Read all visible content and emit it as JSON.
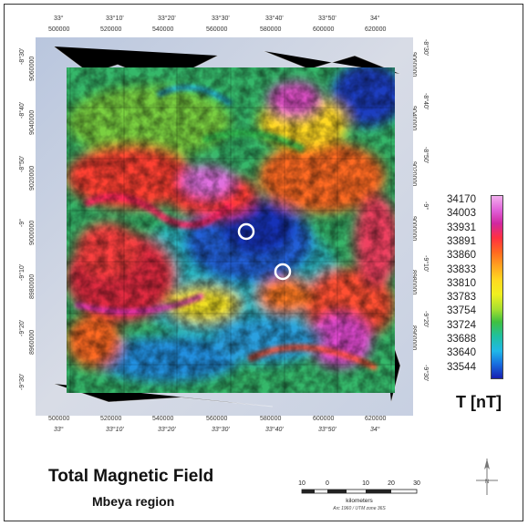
{
  "map": {
    "title": "Total Magnetic Field",
    "subtitle": "Mbeya region",
    "unit_label": "T [nT]",
    "top_degree_labels": [
      "33°",
      "33°10'",
      "33°20'",
      "33°30'",
      "33°40'",
      "33°50'",
      "34°"
    ],
    "top_utm_labels": [
      "500000",
      "520000",
      "540000",
      "560000",
      "580000",
      "600000",
      "620000"
    ],
    "bottom_utm_labels": [
      "500000",
      "520000",
      "540000",
      "560000",
      "580000",
      "600000",
      "620000"
    ],
    "bottom_degree_labels": [
      "33°",
      "33°10'",
      "33°20'",
      "33°30'",
      "33°40'",
      "33°50'",
      "34°"
    ],
    "left_degree_labels": [
      "-8°30'",
      "-8°40'",
      "-8°50'",
      "-9°",
      "-9°10'",
      "-9°20'",
      "-9°30'"
    ],
    "left_utm_labels": [
      "9060000",
      "9040000",
      "9020000",
      "9000000",
      "8980000",
      "8960000"
    ],
    "right_degree_labels": [
      "-8°30'",
      "-8°40'",
      "-8°50'",
      "-9°",
      "-9°10'",
      "-9°20'",
      "-9°30'"
    ],
    "right_utm_labels": [
      "9060000",
      "9040000",
      "9020000",
      "9000000",
      "8980000",
      "8960000"
    ],
    "legend_values": [
      "34170",
      "34003",
      "33931",
      "33891",
      "33860",
      "33833",
      "33810",
      "33783",
      "33754",
      "33724",
      "33688",
      "33640",
      "33544"
    ],
    "legend_colors": [
      "#f2b0ee",
      "#e060d8",
      "#d028a0",
      "#ff3040",
      "#ff6a20",
      "#ffa020",
      "#ffd820",
      "#f0f020",
      "#a8e030",
      "#40c040",
      "#20c0a0",
      "#20b8e8",
      "#1870e0",
      "#1820b0"
    ],
    "scale_bar": {
      "tick_labels": [
        "10",
        "0",
        "10",
        "20",
        "30"
      ],
      "unit": "kilometers",
      "projection_note": "Arc 1960 / UTM zone 36S"
    },
    "north_arrow_label": "N",
    "markers": [
      {
        "name": "circle-marker-1",
        "lon_deg": 33.56,
        "lat_deg": -9.03
      },
      {
        "name": "circle-marker-2",
        "lon_deg": 33.645,
        "lat_deg": -9.155
      }
    ]
  }
}
